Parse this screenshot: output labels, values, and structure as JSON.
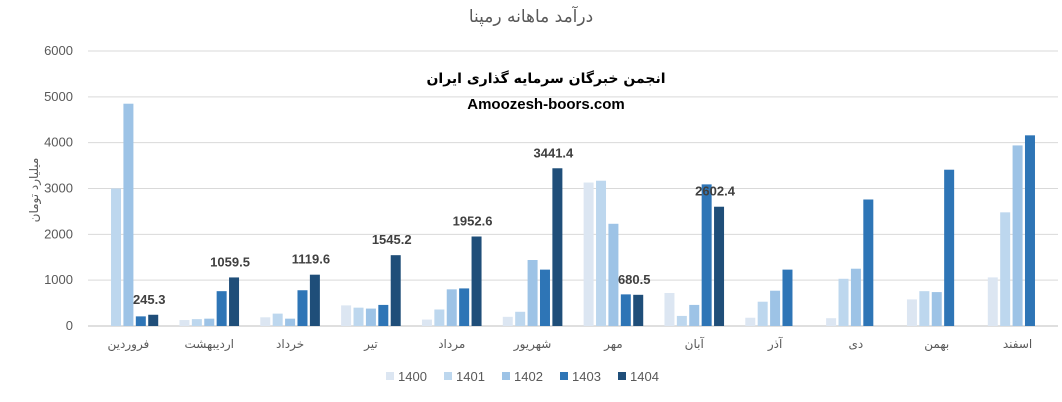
{
  "chart_data": {
    "type": "bar",
    "title": "درآمد ماهانه رمپنا",
    "ylabel": "میلیارد تومان",
    "xlabel": "",
    "ylim": [
      0,
      6000
    ],
    "yticks": [
      "0",
      "1000",
      "2000",
      "3000",
      "4000",
      "5000",
      "6000"
    ],
    "grid": true,
    "legend_position": "bottom",
    "categories": [
      "فروردین",
      "اردیبهشت",
      "خرداد",
      "تیر",
      "مرداد",
      "شهریور",
      "مهر",
      "آبان",
      "آذر",
      "دی",
      "بهمن",
      "اسفند"
    ],
    "series": [
      {
        "name": "1400",
        "color": "#dce6f2",
        "values": [
          0,
          130,
          190,
          450,
          140,
          200,
          3130,
          720,
          180,
          170,
          580,
          1060
        ]
      },
      {
        "name": "1401",
        "color": "#bdd7ee",
        "values": [
          3000,
          150,
          270,
          400,
          360,
          310,
          3170,
          220,
          530,
          1030,
          760,
          2480
        ]
      },
      {
        "name": "1402",
        "color": "#9dc3e6",
        "values": [
          4850,
          160,
          160,
          380,
          800,
          1440,
          2230,
          460,
          770,
          1250,
          740,
          3940
        ]
      },
      {
        "name": "1403",
        "color": "#2e75b6",
        "values": [
          210,
          760,
          780,
          460,
          820,
          1230,
          690,
          3090,
          1230,
          2760,
          3410,
          4160
        ]
      },
      {
        "name": "1404",
        "color": "#1f4e79",
        "values": [
          245.3,
          1059.5,
          1119.6,
          1545.2,
          1952.6,
          3441.4,
          680.5,
          2602.4,
          null,
          null,
          null,
          null
        ]
      }
    ],
    "data_labels": [
      "245.3",
      "1059.5",
      "1119.6",
      "1545.2",
      "1952.6",
      "3441.4",
      "680.5",
      "2602.4"
    ]
  },
  "watermark": {
    "line1": "انجمن خبرگان سرمایه گذاری ایران",
    "line2": "Amoozesh-boors.com"
  }
}
